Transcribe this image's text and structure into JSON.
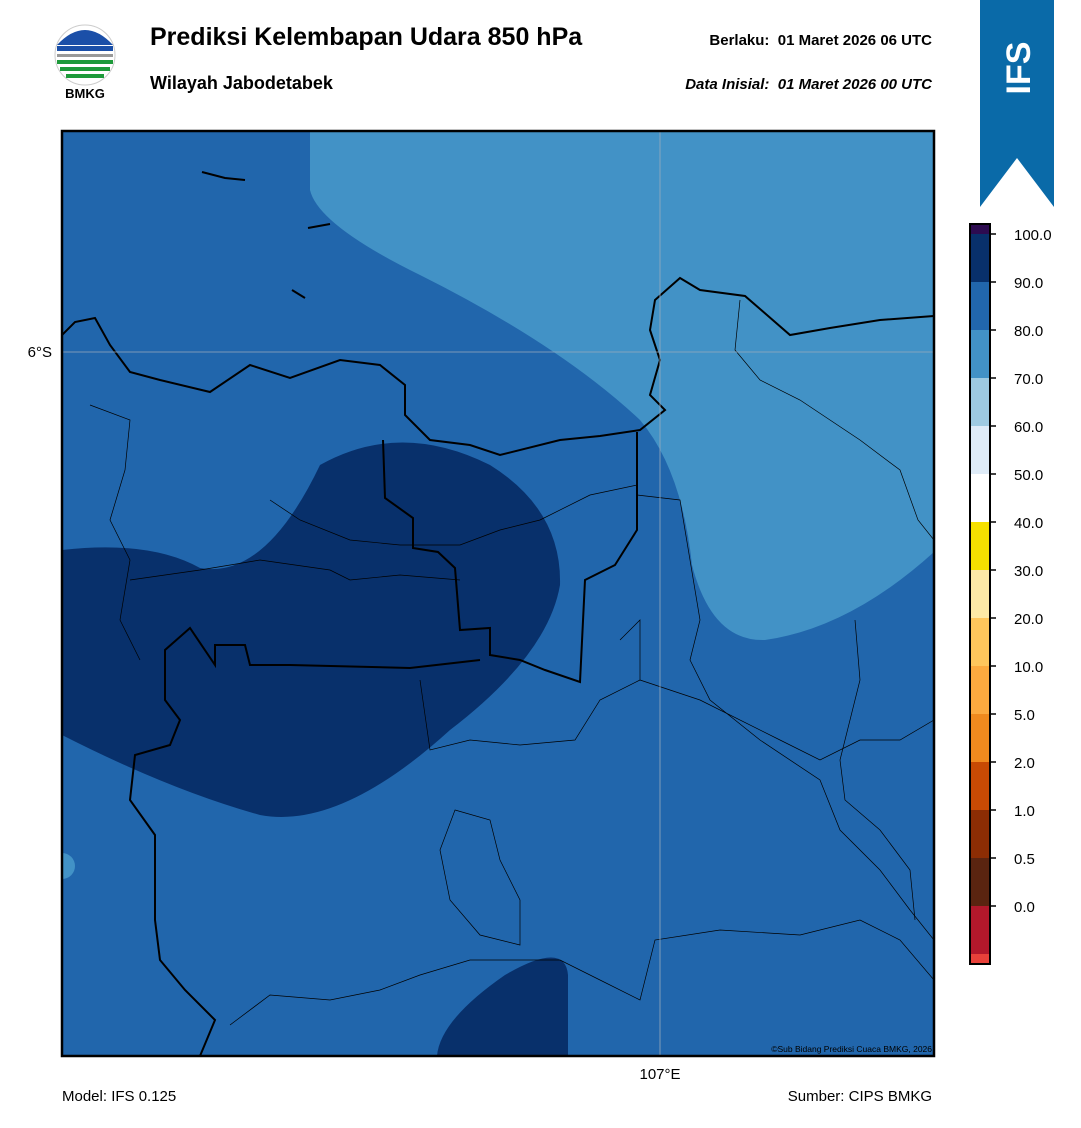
{
  "header": {
    "title": "Prediksi Kelembapan Udara 850 hPa",
    "subtitle": "Wilayah Jabodetabek",
    "valid": "Berlaku:  01 Maret 2026 06 UTC",
    "init": "Data Inisial:  01 Maret 2026 00 UTC",
    "logo_text": "BMKG",
    "badge": "IFS"
  },
  "map": {
    "lat_label": "6°S",
    "lon_label": "107°E",
    "credit": "©Sub Bidang Prediksi Cuaca BMKG, 2026"
  },
  "colorbar": {
    "colors": [
      "#2d0b50",
      "#08306b",
      "#2166ac",
      "#4292c6",
      "#9ecae1",
      "#deebf7",
      "#ffffff",
      "#f5e000",
      "#fde9a6",
      "#fec65c",
      "#fcaa3f",
      "#f08a1e",
      "#c84a04",
      "#8c2d04",
      "#5a2410",
      "#b2182b",
      "#e8413a"
    ],
    "labels": [
      "100.0",
      "90.0",
      "80.0",
      "70.0",
      "60.0",
      "50.0",
      "40.0",
      "30.0",
      "20.0",
      "10.0",
      "5.0",
      "2.0",
      "1.0",
      "0.5",
      "0.0"
    ]
  },
  "footer": {
    "model": "Model: IFS 0.125",
    "source": "Sumber: CIPS BMKG"
  }
}
